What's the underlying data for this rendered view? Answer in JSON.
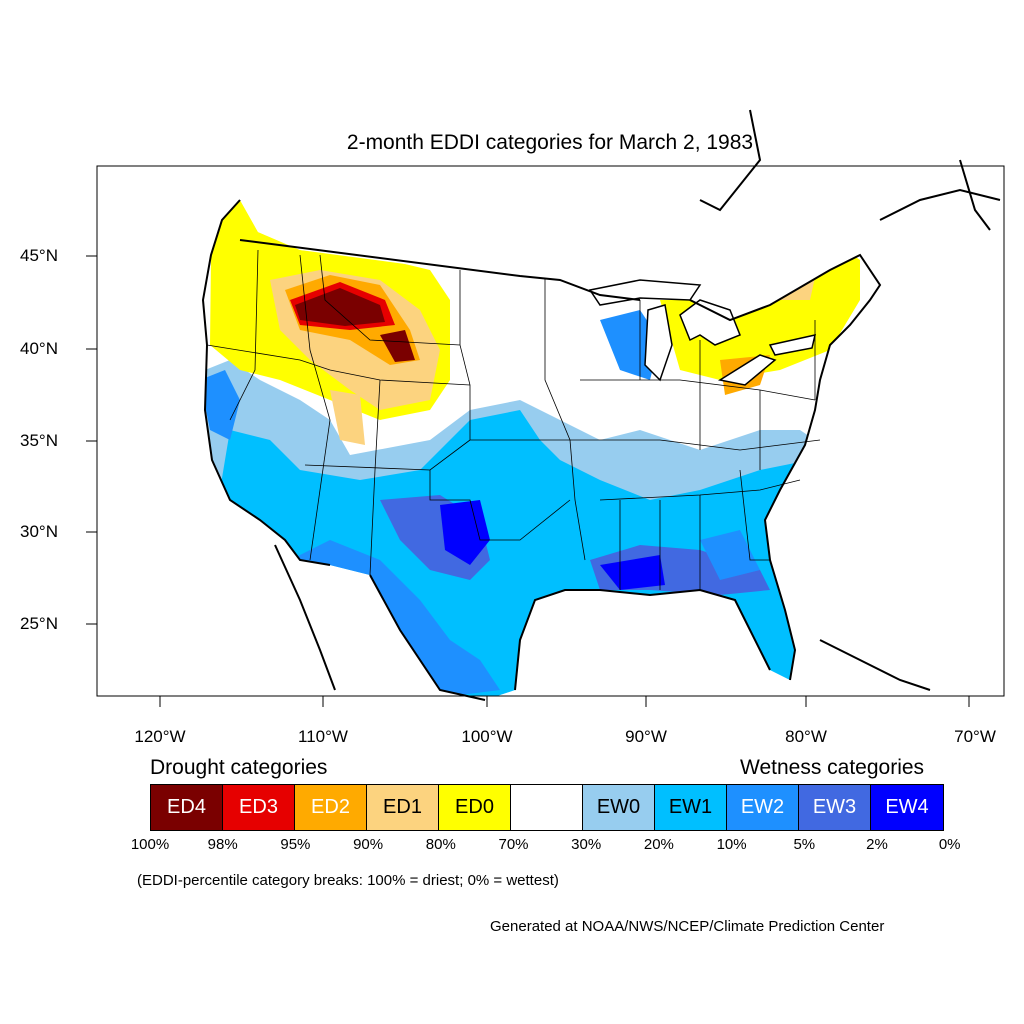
{
  "title": "2-month EDDI categories for March 2, 1983",
  "map": {
    "lat_labels": [
      "45°N",
      "40°N",
      "35°N",
      "30°N",
      "25°N"
    ],
    "lon_labels": [
      "120°W",
      "110°W",
      "100°W",
      "90°W",
      "80°W",
      "70°W"
    ]
  },
  "legend": {
    "drought_title": "Drought categories",
    "wetness_title": "Wetness categories",
    "categories": [
      {
        "label": "ED4",
        "color": "#7a0000",
        "text_color": "#ffffff"
      },
      {
        "label": "ED3",
        "color": "#e60000",
        "text_color": "#ffffff"
      },
      {
        "label": "ED2",
        "color": "#ffaa00",
        "text_color": "#ffffff"
      },
      {
        "label": "ED1",
        "color": "#fcd37f",
        "text_color": "#000000"
      },
      {
        "label": "ED0",
        "color": "#ffff00",
        "text_color": "#000000"
      },
      {
        "label": "",
        "color": "#ffffff",
        "text_color": "#000000"
      },
      {
        "label": "EW0",
        "color": "#97cdef",
        "text_color": "#000000"
      },
      {
        "label": "EW1",
        "color": "#00bfff",
        "text_color": "#000000"
      },
      {
        "label": "EW2",
        "color": "#1e90ff",
        "text_color": "#ffffff"
      },
      {
        "label": "EW3",
        "color": "#4169e1",
        "text_color": "#ffffff"
      },
      {
        "label": "EW4",
        "color": "#0000ff",
        "text_color": "#ffffff"
      }
    ],
    "percent_breaks": [
      "100%",
      "98%",
      "95%",
      "90%",
      "80%",
      "70%",
      "30%",
      "20%",
      "10%",
      "5%",
      "2%",
      "0%"
    ]
  },
  "note": "(EDDI-percentile category breaks: 100% = driest; 0% = wettest)",
  "credit": "Generated at NOAA/NWS/NCEP/Climate Prediction Center"
}
